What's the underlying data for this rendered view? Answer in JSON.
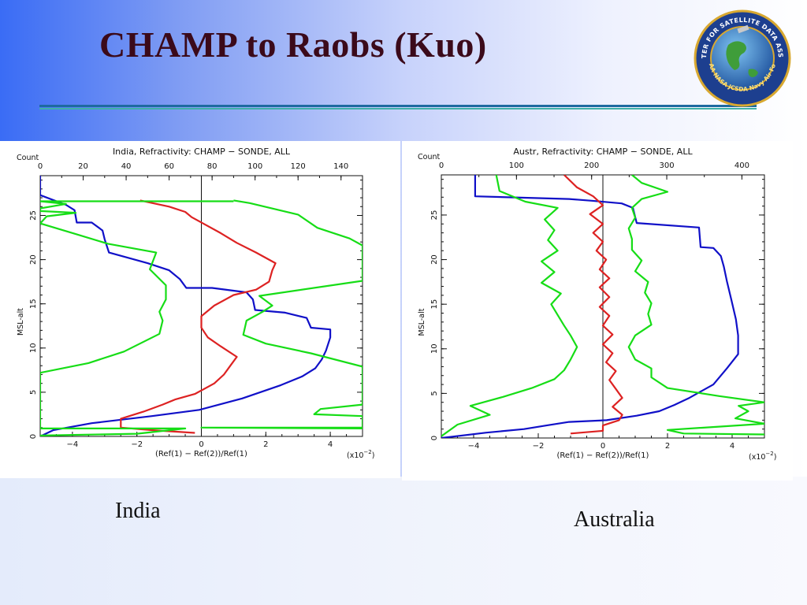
{
  "slide": {
    "title": "CHAMP to Raobs (Kuo)"
  },
  "logo": {
    "ring_top_text": "JOINT CENTER FOR SATELLITE DATA ASSIMILATION",
    "ring_bottom_text": "NOAA NASA JCSDA Navy Air Force"
  },
  "captions": {
    "left": "India",
    "right": "Australia"
  },
  "colors": {
    "count": "#1010c8",
    "mean": "#dd2222",
    "stdev": "#16dd16"
  },
  "chart_data": [
    {
      "type": "line",
      "title": "India, Refractivity: CHAMP − SONDE, ALL",
      "top_axis_label": "Count",
      "top_ticks": [
        "0",
        "20",
        "40",
        "60",
        "80",
        "100",
        "120",
        "140"
      ],
      "top_range": [
        0,
        150
      ],
      "bottom_ticks": [
        "−4",
        "−2",
        "0",
        "2",
        "4"
      ],
      "bottom_range": [
        -5,
        5
      ],
      "bottom_label": "(Ref(1) − Ref(2))/Ref(1)",
      "bottom_scale": "(x10",
      "bottom_scale_exp": "−2",
      "bottom_scale_close": ")",
      "ylabel": "MSL-alt",
      "y_ticks": [
        "0",
        "5",
        "10",
        "15",
        "20",
        "25"
      ],
      "ylim": [
        0,
        29.5
      ],
      "series": [
        {
          "id": "count",
          "axis": "top",
          "points": [
            [
              0,
              0
            ],
            [
              6,
              0.7
            ],
            [
              24,
              1.5
            ],
            [
              52,
              2.3
            ],
            [
              74,
              3
            ],
            [
              94,
              4.3
            ],
            [
              112,
              5.8
            ],
            [
              122,
              6.8
            ],
            [
              128,
              7.7
            ],
            [
              131,
              8.7
            ],
            [
              133,
              9.7
            ],
            [
              135,
              11.2
            ],
            [
              135,
              12.1
            ],
            [
              126,
              12.3
            ],
            [
              124,
              13.4
            ],
            [
              114,
              14
            ],
            [
              100,
              14.3
            ],
            [
              99,
              15.5
            ],
            [
              96,
              16.3
            ],
            [
              80,
              16.8
            ],
            [
              68,
              16.8
            ],
            [
              65,
              17.8
            ],
            [
              60,
              18.8
            ],
            [
              50,
              19.6
            ],
            [
              32,
              20.8
            ],
            [
              30,
              22.3
            ],
            [
              29,
              23.3
            ],
            [
              24,
              24.2
            ],
            [
              17,
              24.2
            ],
            [
              16,
              25.6
            ],
            [
              12,
              26.2
            ],
            [
              0,
              27.3
            ],
            [
              0,
              29.5
            ]
          ]
        },
        {
          "id": "mean",
          "axis": "bottom",
          "points": [
            [
              -0.2,
              0.4
            ],
            [
              -1.5,
              0.7
            ],
            [
              -2.5,
              1
            ],
            [
              -2.5,
              2
            ],
            [
              -1.8,
              2.8
            ],
            [
              -1.2,
              3.6
            ],
            [
              -0.8,
              4.2
            ],
            [
              -0.2,
              4.8
            ],
            [
              0.4,
              6
            ],
            [
              0.7,
              7
            ],
            [
              0.9,
              8
            ],
            [
              1.1,
              9
            ],
            [
              0.6,
              10.2
            ],
            [
              0.2,
              11.2
            ],
            [
              0,
              12.3
            ],
            [
              0,
              13.6
            ],
            [
              0.4,
              14.8
            ],
            [
              1,
              16
            ],
            [
              1.7,
              16.6
            ],
            [
              2.1,
              17.5
            ],
            [
              2.2,
              18.8
            ],
            [
              2.3,
              19.6
            ],
            [
              1.7,
              20.8
            ],
            [
              1.1,
              21.9
            ],
            [
              0.6,
              23
            ],
            [
              0.1,
              24
            ],
            [
              -0.3,
              24.8
            ],
            [
              -0.5,
              25.4
            ],
            [
              -1.0,
              26.0
            ],
            [
              -1.9,
              26.7
            ]
          ]
        },
        {
          "id": "stdev_neg",
          "axis": "bottom",
          "points": [
            [
              -5,
              0.1
            ],
            [
              -2,
              0.3
            ],
            [
              -0.5,
              0.9
            ],
            [
              -5,
              0.9
            ],
            [
              -5,
              7.2
            ],
            [
              -3.5,
              8.3
            ],
            [
              -2.4,
              9.6
            ],
            [
              -1.3,
              11.6
            ],
            [
              -1.2,
              13.1
            ],
            [
              -1.3,
              14.1
            ],
            [
              -1.1,
              15.5
            ],
            [
              -1.1,
              17.1
            ],
            [
              -1.6,
              18.9
            ],
            [
              -1.4,
              20.8
            ],
            [
              -2.9,
              21.8
            ],
            [
              -3.9,
              22.9
            ],
            [
              -5,
              24.1
            ],
            [
              -4.8,
              24.9
            ],
            [
              -3.9,
              25.3
            ],
            [
              -5,
              25.5
            ],
            [
              -5,
              25.8
            ],
            [
              -4.2,
              26.3
            ],
            [
              -5,
              26.6
            ],
            [
              -2,
              26.6
            ],
            [
              0,
              26.6
            ],
            [
              1,
              26.6
            ]
          ]
        },
        {
          "id": "stdev_pos",
          "axis": "bottom",
          "points": [
            [
              5,
              1.0
            ],
            [
              0,
              1.0
            ],
            [
              5,
              0.9
            ],
            [
              5,
              2.3
            ],
            [
              3.5,
              2.5
            ],
            [
              3.7,
              3.1
            ],
            [
              5,
              3.6
            ],
            [
              5,
              7.9
            ],
            [
              3.4,
              9.4
            ],
            [
              2,
              10.5
            ],
            [
              1.3,
              11.5
            ],
            [
              1.4,
              13.1
            ],
            [
              1.9,
              14.1
            ],
            [
              2.2,
              14.8
            ],
            [
              1.8,
              15.9
            ],
            [
              5,
              17.6
            ],
            [
              5,
              21.6
            ],
            [
              4.6,
              22.4
            ],
            [
              3.6,
              23.6
            ],
            [
              3,
              25.1
            ],
            [
              1.5,
              26.4
            ],
            [
              1,
              26.7
            ]
          ]
        }
      ]
    },
    {
      "type": "line",
      "title": "Austr, Refractivity: CHAMP − SONDE, ALL",
      "top_axis_label": "Count",
      "top_ticks": [
        "0",
        "100",
        "200",
        "300",
        "400"
      ],
      "top_range": [
        0,
        430
      ],
      "bottom_ticks": [
        "−4",
        "−2",
        "0",
        "2",
        "4"
      ],
      "bottom_range": [
        -5,
        5
      ],
      "bottom_label": "(Ref(1) − Ref(2))/Ref(1)",
      "bottom_scale": "(x10",
      "bottom_scale_exp": "−2",
      "bottom_scale_close": ")",
      "ylabel": "MSL-alt",
      "y_ticks": [
        "0",
        "5",
        "10",
        "15",
        "20",
        "25"
      ],
      "ylim": [
        0,
        29.5
      ],
      "series": [
        {
          "id": "count",
          "axis": "top",
          "points": [
            [
              0,
              0
            ],
            [
              60,
              0.6
            ],
            [
              110,
              1
            ],
            [
              140,
              1.4
            ],
            [
              170,
              1.8
            ],
            [
              220,
              2
            ],
            [
              260,
              2.5
            ],
            [
              290,
              3
            ],
            [
              310,
              3.7
            ],
            [
              330,
              4.5
            ],
            [
              345,
              5.2
            ],
            [
              362,
              6
            ],
            [
              380,
              7.8
            ],
            [
              395,
              9.4
            ],
            [
              395,
              11.5
            ],
            [
              392,
              13.3
            ],
            [
              386,
              15.5
            ],
            [
              380,
              17.6
            ],
            [
              376,
              19.2
            ],
            [
              372,
              20.4
            ],
            [
              362,
              21.3
            ],
            [
              345,
              21.4
            ],
            [
              343,
              23.6
            ],
            [
              260,
              24.1
            ],
            [
              255,
              25.8
            ],
            [
              240,
              26.3
            ],
            [
              200,
              26.6
            ],
            [
              170,
              26.8
            ],
            [
              45,
              27.1
            ],
            [
              45,
              29.5
            ]
          ]
        },
        {
          "id": "mean",
          "axis": "bottom",
          "points": [
            [
              -1,
              0.5
            ],
            [
              0,
              0.8
            ],
            [
              0,
              1.4
            ],
            [
              0.5,
              2
            ],
            [
              0.6,
              2.6
            ],
            [
              0.3,
              3.5
            ],
            [
              0.6,
              4.5
            ],
            [
              0.4,
              5.5
            ],
            [
              0.2,
              6.5
            ],
            [
              0.4,
              7.5
            ],
            [
              0.1,
              8.5
            ],
            [
              0.3,
              9.5
            ],
            [
              0.0,
              10.5
            ],
            [
              0.3,
              11.6
            ],
            [
              0.0,
              12.6
            ],
            [
              0.2,
              13.7
            ],
            [
              -0.1,
              14.7
            ],
            [
              0.2,
              15.8
            ],
            [
              -0.1,
              16.9
            ],
            [
              0.2,
              17.9
            ],
            [
              -0.1,
              18.9
            ],
            [
              0.1,
              20
            ],
            [
              -0.2,
              21
            ],
            [
              0.0,
              22
            ],
            [
              -0.3,
              23
            ],
            [
              0.0,
              24
            ],
            [
              -0.4,
              25.1
            ],
            [
              0.0,
              26.1
            ],
            [
              -0.3,
              27.1
            ],
            [
              -0.8,
              28.1
            ],
            [
              -1.2,
              29.5
            ]
          ]
        },
        {
          "id": "stdev_neg",
          "axis": "bottom",
          "points": [
            [
              -5,
              0.2
            ],
            [
              -4.5,
              1.5
            ],
            [
              -3.5,
              2.6
            ],
            [
              -4.1,
              3.6
            ],
            [
              -3.1,
              4.6
            ],
            [
              -2.2,
              5.6
            ],
            [
              -1.5,
              6.6
            ],
            [
              -1.2,
              7.6
            ],
            [
              -1.0,
              8.8
            ],
            [
              -0.8,
              10.2
            ],
            [
              -1.0,
              11.5
            ],
            [
              -1.2,
              12.6
            ],
            [
              -1.4,
              13.8
            ],
            [
              -1.6,
              15
            ],
            [
              -1.3,
              16.2
            ],
            [
              -1.9,
              17.4
            ],
            [
              -1.5,
              18.6
            ],
            [
              -1.9,
              19.8
            ],
            [
              -1.4,
              21
            ],
            [
              -1.7,
              22.2
            ],
            [
              -1.5,
              23.3
            ],
            [
              -1.8,
              24.5
            ],
            [
              -1.4,
              25.8
            ],
            [
              -2.4,
              26.5
            ],
            [
              -3.2,
              27.7
            ],
            [
              -3.3,
              29.5
            ]
          ]
        },
        {
          "id": "stdev_pos",
          "axis": "bottom",
          "points": [
            [
              5,
              0.4
            ],
            [
              2.5,
              0.5
            ],
            [
              2.0,
              0.9
            ],
            [
              5,
              1.6
            ],
            [
              4.1,
              2.2
            ],
            [
              4.5,
              3.0
            ],
            [
              4.2,
              3.6
            ],
            [
              5,
              4.0
            ],
            [
              3.6,
              4.7
            ],
            [
              2.0,
              5.6
            ],
            [
              1.5,
              6.8
            ],
            [
              1.5,
              7.8
            ],
            [
              1.0,
              8.8
            ],
            [
              0.8,
              10.2
            ],
            [
              1.0,
              11.5
            ],
            [
              1.5,
              12.7
            ],
            [
              1.4,
              13.9
            ],
            [
              1.5,
              15.1
            ],
            [
              1.3,
              16.3
            ],
            [
              1.4,
              17.5
            ],
            [
              1.0,
              18.7
            ],
            [
              1.2,
              19.9
            ],
            [
              0.9,
              21.1
            ],
            [
              0.9,
              22.3
            ],
            [
              0.8,
              23.5
            ],
            [
              1.0,
              24.7
            ],
            [
              0.9,
              25.8
            ],
            [
              1.2,
              26.8
            ],
            [
              2.0,
              27.6
            ],
            [
              1.2,
              28.6
            ],
            [
              0.9,
              29.5
            ]
          ]
        }
      ]
    }
  ]
}
